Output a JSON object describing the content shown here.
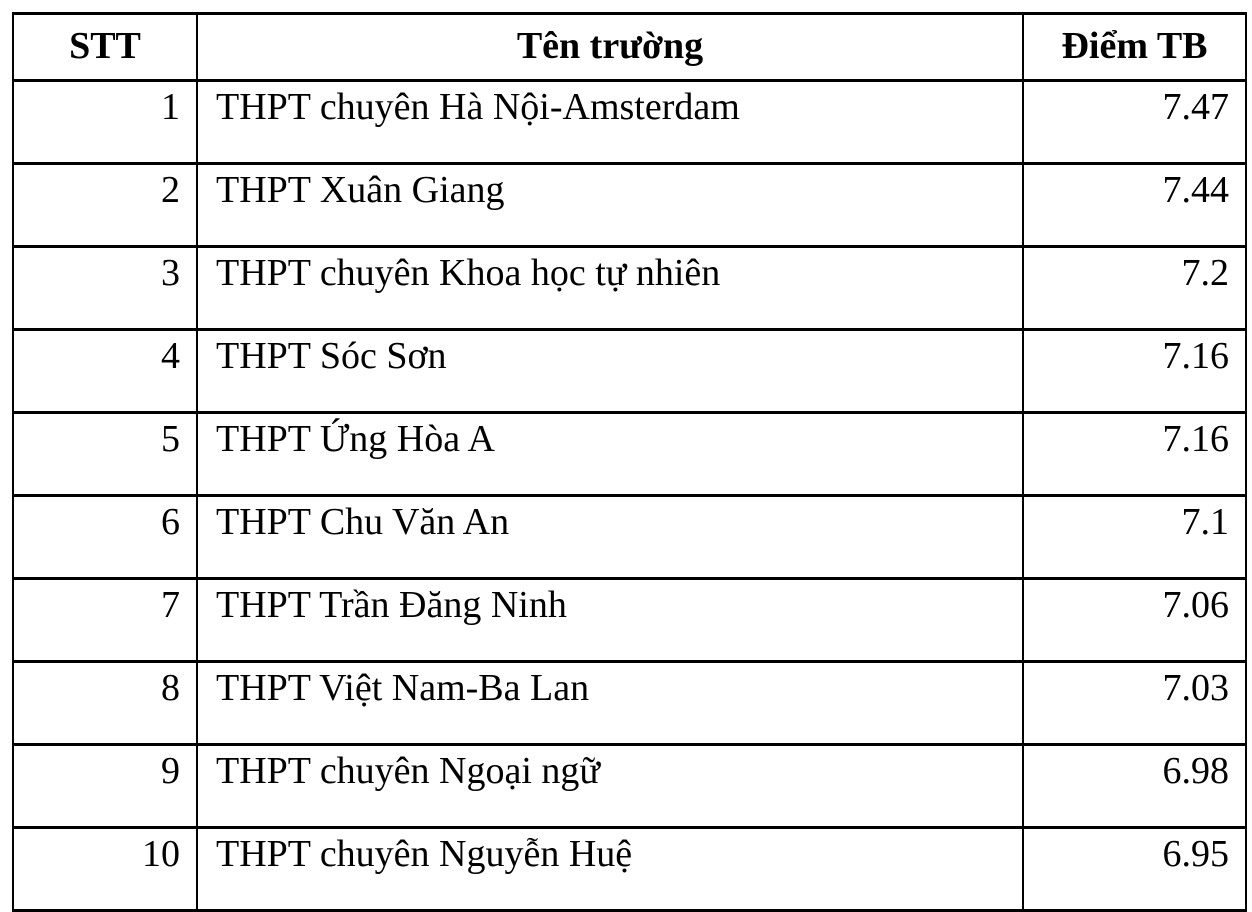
{
  "chart_data": {
    "type": "table",
    "columns": [
      "STT",
      "Tên trường",
      "Điểm TB"
    ],
    "rows": [
      [
        "1",
        "THPT chuyên Hà Nội-Amsterdam",
        "7.47"
      ],
      [
        "2",
        "THPT Xuân Giang",
        "7.44"
      ],
      [
        "3",
        "THPT chuyên Khoa học tự nhiên",
        "7.2"
      ],
      [
        "4",
        "THPT Sóc Sơn",
        "7.16"
      ],
      [
        "5",
        "THPT Ứng Hòa A",
        "7.16"
      ],
      [
        "6",
        "THPT Chu Văn An",
        "7.1"
      ],
      [
        "7",
        "THPT Trần Đăng Ninh",
        "7.06"
      ],
      [
        "8",
        "THPT Việt Nam-Ba Lan",
        "7.03"
      ],
      [
        "9",
        "THPT chuyên Ngoại ngữ",
        "6.98"
      ],
      [
        "10",
        "THPT chuyên Nguyễn Huệ",
        "6.95"
      ]
    ],
    "colors": {
      "border": "#000000",
      "text": "#000000",
      "background": "#ffffff"
    }
  }
}
